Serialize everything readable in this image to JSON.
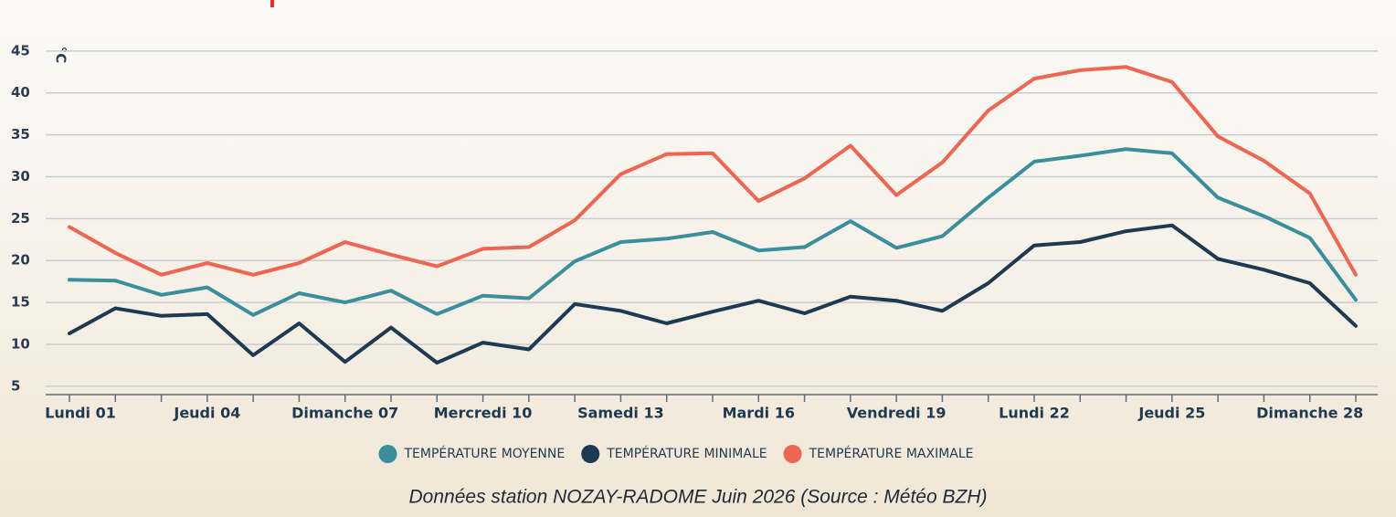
{
  "chart_data": {
    "type": "line",
    "unit_label": "°C",
    "caption": "Données station NOZAY-RADOME Juin 2026 (Source : Météo BZH)",
    "categories": [
      "Lundi 01",
      null,
      null,
      "Jeudi 04",
      null,
      null,
      "Dimanche 07",
      null,
      null,
      "Mercredi 10",
      null,
      null,
      "Samedi 13",
      null,
      null,
      "Mardi 16",
      null,
      null,
      "Vendredi 19",
      null,
      null,
      "Lundi 22",
      null,
      null,
      "Jeudi 25",
      null,
      null,
      "Dimanche 28",
      null
    ],
    "series": [
      {
        "name": "TEMPÉRATURE MOYENNE",
        "color": "#3a8f9c",
        "values": [
          17.7,
          17.6,
          15.9,
          16.8,
          13.5,
          16.1,
          15.0,
          16.4,
          13.6,
          15.8,
          15.5,
          19.9,
          22.2,
          22.6,
          23.4,
          21.2,
          21.6,
          24.7,
          21.5,
          22.9,
          27.5,
          31.8,
          32.5,
          33.3,
          32.8,
          27.5,
          25.3,
          22.7,
          15.3
        ]
      },
      {
        "name": "TEMPÉRATURE MINIMALE",
        "color": "#1e3a52",
        "values": [
          11.3,
          14.3,
          13.4,
          13.6,
          8.7,
          12.5,
          7.9,
          12.0,
          7.8,
          10.2,
          9.4,
          14.8,
          14.0,
          12.5,
          13.9,
          15.2,
          13.7,
          15.7,
          15.2,
          14.0,
          17.3,
          21.8,
          22.2,
          23.5,
          24.2,
          20.2,
          18.9,
          17.3,
          12.2
        ]
      },
      {
        "name": "TEMPÉRATURE MAXIMALE",
        "color": "#ee6552",
        "values": [
          24.0,
          20.9,
          18.3,
          19.7,
          18.3,
          19.7,
          22.2,
          20.7,
          19.3,
          21.4,
          21.6,
          24.8,
          30.3,
          32.7,
          32.8,
          27.1,
          29.8,
          33.7,
          27.8,
          31.7,
          37.9,
          41.7,
          42.7,
          43.1,
          41.3,
          34.8,
          31.9,
          28.0,
          18.3
        ]
      }
    ],
    "ylim": [
      4,
      46
    ],
    "yticks": [
      5,
      10,
      15,
      20,
      25,
      30,
      35,
      40,
      45
    ],
    "grid": true
  }
}
